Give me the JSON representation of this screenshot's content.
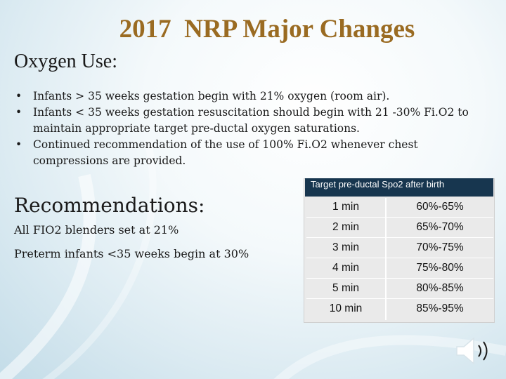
{
  "title": "2017  NRP Major Changes",
  "subtitle": "Oxygen Use:",
  "bullets": [
    "Infants > 35 weeks gestation begin with 21% oxygen (room air).",
    "Infants < 35 weeks gestation resuscitation should begin with 21 -30% Fi.O2 to maintain appropriate target pre-ductal oxygen saturations.",
    "Continued recommendation of the use of  100% Fi.O2 whenever chest compressions are provided."
  ],
  "recommendations": {
    "title": "Recommendations:",
    "items": [
      "All FIO2 blenders set at 21%",
      "Preterm infants <35 weeks begin at 30%"
    ]
  },
  "table": {
    "header": "Target pre-ductal Spo2 after birth",
    "rows": [
      [
        "1 min",
        "60%-65%"
      ],
      [
        "2 min",
        "65%-70%"
      ],
      [
        "3 min",
        "70%-75%"
      ],
      [
        "4 min",
        "75%-80%"
      ],
      [
        "5 min",
        "80%-85%"
      ],
      [
        "10 min",
        "85%-95%"
      ]
    ]
  },
  "icons": {
    "bullet": "•",
    "speaker": "speaker-icon"
  },
  "colors": {
    "title": "#9a6b22",
    "table_header": "#17364f",
    "table_body": "#eaeaea"
  }
}
